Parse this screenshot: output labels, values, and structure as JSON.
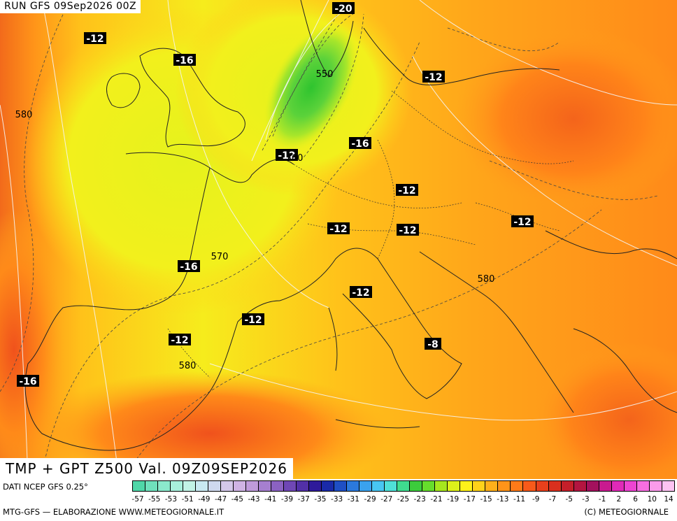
{
  "header": {
    "run_title": "RUN GFS 09Sep2026 00Z"
  },
  "map": {
    "title": "TMP + GPT Z500 Val. 09Z09SEP2026",
    "temperature_labels": [
      "-20",
      "-12",
      "-16",
      "-12",
      "-16",
      "-12",
      "-12",
      "-12",
      "-12",
      "-16",
      "-12",
      "-12",
      "-12",
      "-12",
      "-8",
      "-16"
    ],
    "height_labels": [
      "580",
      "550",
      "560",
      "570",
      "580",
      "580"
    ]
  },
  "colorbar": {
    "labels": [
      "-57",
      "-55",
      "-53",
      "-51",
      "-49",
      "-47",
      "-45",
      "-43",
      "-41",
      "-39",
      "-37",
      "-35",
      "-33",
      "-31",
      "-29",
      "-27",
      "-25",
      "-23",
      "-21",
      "-19",
      "-17",
      "-15",
      "-13",
      "-11",
      "-9",
      "-7",
      "-5",
      "-3",
      "-1",
      "2",
      "6",
      "10",
      "14"
    ],
    "colors": [
      "#4fd7a8",
      "#6fe1bc",
      "#8be9cc",
      "#a8f0dc",
      "#c2f3e6",
      "#c9e9f2",
      "#cfd9ee",
      "#d4c8ea",
      "#cfb3e4",
      "#bf9bdb",
      "#a67fcf",
      "#8b62c2",
      "#6f47b5",
      "#5230a7",
      "#2e1a9a",
      "#1a2aa8",
      "#1f4fc4",
      "#2b79dd",
      "#3aa2ee",
      "#48c6f2",
      "#4fe0d8",
      "#3fdc8f",
      "#3ccc3c",
      "#66dc2c",
      "#a6e61e",
      "#dcf01a",
      "#fff21a",
      "#ffd21a",
      "#ffb01a",
      "#ff9419",
      "#ff7a19",
      "#f85a1a",
      "#e8401c",
      "#d9301e",
      "#c51f2a",
      "#b31540",
      "#a3115d",
      "#c81a8f",
      "#e02ab8",
      "#ee44d2",
      "#f66ee0",
      "#fb9bea",
      "#fdc3f2"
    ]
  },
  "footer": {
    "source": "DATI NCEP GFS 0.25°",
    "credit_left": "MTG-GFS — ELABORAZIONE WWW.METEOGIORNALE.IT",
    "credit_right": "(C) METEOGIORNALE"
  }
}
